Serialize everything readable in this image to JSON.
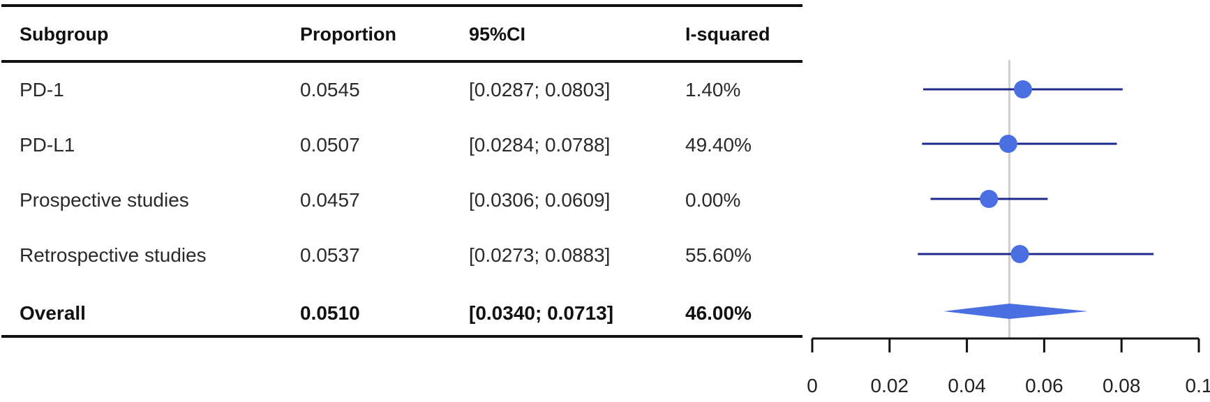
{
  "table": {
    "headers": [
      "Subgroup",
      "Proportion",
      "95%CI",
      "I-squared"
    ],
    "rows": [
      {
        "subgroup": "PD-1",
        "proportion": "0.0545",
        "ci": "[0.0287; 0.0803]",
        "i2": "1.40%"
      },
      {
        "subgroup": "PD-L1",
        "proportion": "0.0507",
        "ci": "[0.0284; 0.0788]",
        "i2": "49.40%"
      },
      {
        "subgroup": "Prospective studies",
        "proportion": "0.0457",
        "ci": "[0.0306; 0.0609]",
        "i2": "0.00%"
      },
      {
        "subgroup": "Retrospective studies",
        "proportion": "0.0537",
        "ci": "[0.0273; 0.0883]",
        "i2": "55.60%"
      }
    ],
    "overall": {
      "subgroup": "Overall",
      "proportion": "0.0510",
      "ci": "[0.0340; 0.0713]",
      "i2": "46.00%"
    }
  },
  "chart_data": {
    "type": "forest",
    "title": "",
    "xlabel": "",
    "xlim": [
      0,
      0.1
    ],
    "x_ticks": [
      "0",
      "0.02",
      "0.04",
      "0.06",
      "0.08",
      "0.1"
    ],
    "reference_line": 0.051,
    "studies": [
      {
        "label": "PD-1",
        "estimate": 0.0545,
        "lower": 0.0287,
        "upper": 0.0803
      },
      {
        "label": "PD-L1",
        "estimate": 0.0507,
        "lower": 0.0284,
        "upper": 0.0788
      },
      {
        "label": "Prospective studies",
        "estimate": 0.0457,
        "lower": 0.0306,
        "upper": 0.0609
      },
      {
        "label": "Retrospective studies",
        "estimate": 0.0537,
        "lower": 0.0273,
        "upper": 0.0883
      }
    ],
    "overall": {
      "label": "Overall",
      "estimate": 0.051,
      "lower": 0.034,
      "upper": 0.0713
    },
    "colors": {
      "marker": "#4a6fe3",
      "ci_line": "#1f2a8c",
      "diamond": "#4a6fe3",
      "reference": "#cfcfcf",
      "axis": "#111111"
    }
  }
}
